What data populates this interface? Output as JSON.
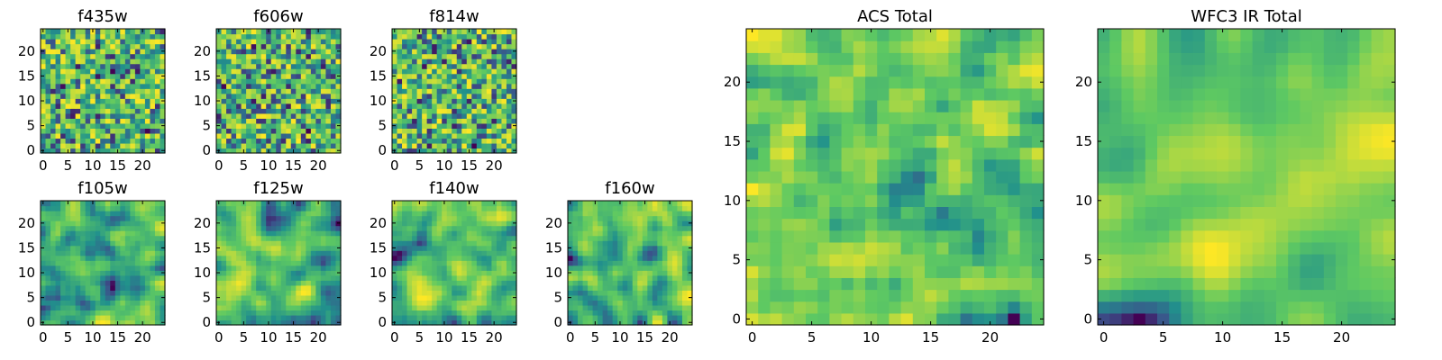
{
  "figure": {
    "colormap": "viridis",
    "colormap_stops": [
      "#440154",
      "#3b528b",
      "#21918c",
      "#5ec962",
      "#fde725"
    ]
  },
  "chart_data": [
    {
      "id": "f435w",
      "type": "heatmap",
      "title": "f435w",
      "grid_size": [
        25,
        25
      ],
      "xlim": [
        0,
        24
      ],
      "ylim": [
        0,
        24
      ],
      "xticks": [
        0,
        5,
        10,
        15,
        20
      ],
      "yticks": [
        0,
        5,
        10,
        15,
        20
      ],
      "smoothness": 0,
      "seed": 11,
      "value_range": [
        0,
        1
      ],
      "grid": false
    },
    {
      "id": "f606w",
      "type": "heatmap",
      "title": "f606w",
      "grid_size": [
        25,
        25
      ],
      "xlim": [
        0,
        24
      ],
      "ylim": [
        0,
        24
      ],
      "xticks": [
        0,
        5,
        10,
        15,
        20
      ],
      "yticks": [
        0,
        5,
        10,
        15,
        20
      ],
      "smoothness": 0,
      "seed": 23,
      "value_range": [
        0,
        1
      ],
      "grid": false
    },
    {
      "id": "f814w",
      "type": "heatmap",
      "title": "f814w",
      "grid_size": [
        25,
        25
      ],
      "xlim": [
        0,
        24
      ],
      "ylim": [
        0,
        24
      ],
      "xticks": [
        0,
        5,
        10,
        15,
        20
      ],
      "yticks": [
        0,
        5,
        10,
        15,
        20
      ],
      "smoothness": 0,
      "seed": 37,
      "value_range": [
        0,
        1
      ],
      "grid": false
    },
    {
      "id": "f105w",
      "type": "heatmap",
      "title": "f105w",
      "grid_size": [
        25,
        25
      ],
      "xlim": [
        0,
        24
      ],
      "ylim": [
        0,
        24
      ],
      "xticks": [
        0,
        5,
        10,
        15,
        20
      ],
      "yticks": [
        0,
        5,
        10,
        15,
        20
      ],
      "smoothness": 2,
      "seed": 41,
      "value_range": [
        0,
        1
      ],
      "grid": false
    },
    {
      "id": "f125w",
      "type": "heatmap",
      "title": "f125w",
      "grid_size": [
        25,
        25
      ],
      "xlim": [
        0,
        24
      ],
      "ylim": [
        0,
        24
      ],
      "xticks": [
        0,
        5,
        10,
        15,
        20
      ],
      "yticks": [
        0,
        5,
        10,
        15,
        20
      ],
      "smoothness": 2,
      "seed": 53,
      "value_range": [
        0,
        1
      ],
      "grid": false
    },
    {
      "id": "f140w",
      "type": "heatmap",
      "title": "f140w",
      "grid_size": [
        25,
        25
      ],
      "xlim": [
        0,
        24
      ],
      "ylim": [
        0,
        24
      ],
      "xticks": [
        0,
        5,
        10,
        15,
        20
      ],
      "yticks": [
        0,
        5,
        10,
        15,
        20
      ],
      "smoothness": 2,
      "seed": 67,
      "value_range": [
        0,
        1
      ],
      "grid": false
    },
    {
      "id": "f160w",
      "type": "heatmap",
      "title": "f160w",
      "grid_size": [
        25,
        25
      ],
      "xlim": [
        0,
        24
      ],
      "ylim": [
        0,
        24
      ],
      "xticks": [
        0,
        5,
        10,
        15,
        20
      ],
      "yticks": [
        0,
        5,
        10,
        15,
        20
      ],
      "smoothness": 2,
      "seed": 79,
      "value_range": [
        0,
        1
      ],
      "grid": false
    },
    {
      "id": "acs-total",
      "type": "heatmap",
      "title": "ACS Total",
      "grid_size": [
        25,
        25
      ],
      "xlim": [
        0,
        24
      ],
      "ylim": [
        0,
        24
      ],
      "xticks": [
        0,
        5,
        10,
        15,
        20
      ],
      "yticks": [
        0,
        5,
        10,
        15,
        20
      ],
      "smoothness": 1,
      "seed": 83,
      "value_range": [
        0,
        1
      ],
      "grid": false
    },
    {
      "id": "wfc3-ir-total",
      "type": "heatmap",
      "title": "WFC3 IR Total",
      "grid_size": [
        25,
        25
      ],
      "xlim": [
        0,
        24
      ],
      "ylim": [
        0,
        24
      ],
      "xticks": [
        0,
        5,
        10,
        15,
        20
      ],
      "yticks": [
        0,
        5,
        10,
        15,
        20
      ],
      "smoothness": 3,
      "seed": 97,
      "value_range": [
        0,
        1
      ],
      "grid": false
    }
  ]
}
